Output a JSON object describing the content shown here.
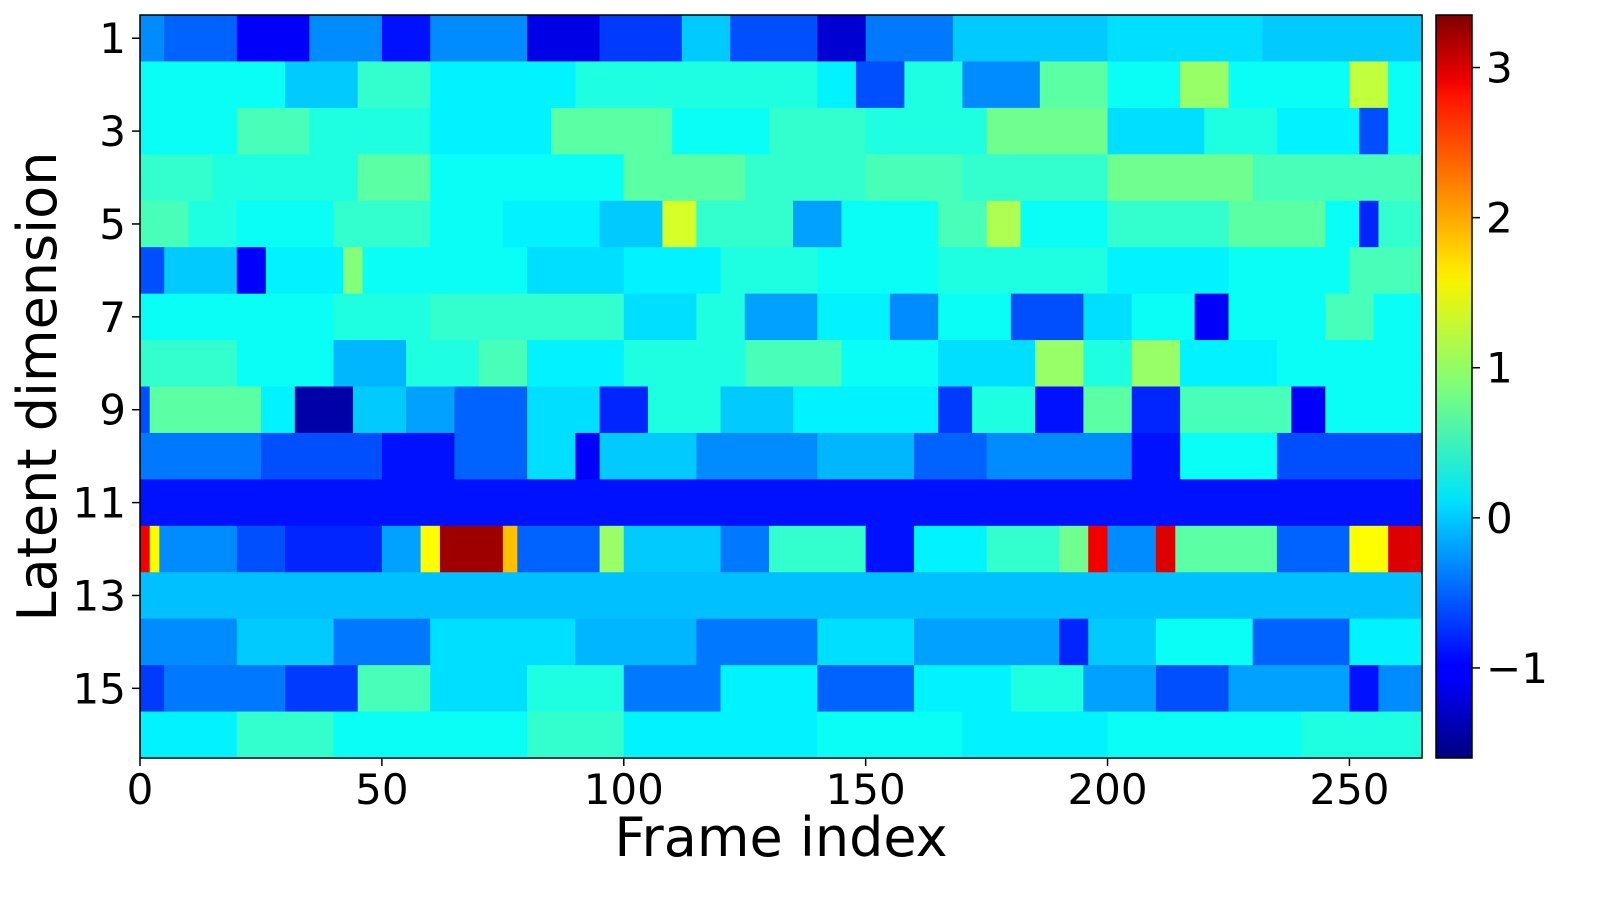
{
  "chart_data": {
    "type": "heatmap",
    "title": "",
    "xlabel": "Frame index",
    "ylabel": "Latent dimension",
    "colormap": "jet",
    "xlim": [
      0,
      265
    ],
    "rows": 16,
    "cols": 265,
    "x_ticks": [
      0,
      50,
      100,
      150,
      200,
      250
    ],
    "y_ticks": [
      1,
      3,
      5,
      7,
      9,
      11,
      13,
      15
    ],
    "colorbar": {
      "vmin": -1.6,
      "vmax": 3.35,
      "ticks": [
        -1,
        0,
        1,
        2,
        3
      ],
      "tick_labels": [
        "−1",
        "0",
        "1",
        "2",
        "3"
      ]
    },
    "rows_data": [
      {
        "dimension": 1,
        "segments": [
          [
            0,
            5,
            -0.3
          ],
          [
            5,
            20,
            -0.5
          ],
          [
            20,
            35,
            -1.0
          ],
          [
            35,
            50,
            -0.3
          ],
          [
            50,
            60,
            -0.9
          ],
          [
            60,
            80,
            -0.3
          ],
          [
            80,
            95,
            -1.1
          ],
          [
            95,
            112,
            -0.7
          ],
          [
            112,
            122,
            0.0
          ],
          [
            122,
            140,
            -0.6
          ],
          [
            140,
            150,
            -1.2
          ],
          [
            150,
            168,
            -0.4
          ],
          [
            168,
            200,
            0.0
          ],
          [
            200,
            232,
            0.1
          ],
          [
            232,
            265,
            0.0
          ]
        ]
      },
      {
        "dimension": 2,
        "segments": [
          [
            0,
            30,
            0.3
          ],
          [
            30,
            45,
            0.0
          ],
          [
            45,
            60,
            0.5
          ],
          [
            60,
            90,
            0.2
          ],
          [
            90,
            140,
            0.4
          ],
          [
            140,
            148,
            0.2
          ],
          [
            148,
            158,
            -0.6
          ],
          [
            158,
            170,
            0.4
          ],
          [
            170,
            186,
            -0.3
          ],
          [
            186,
            200,
            0.7
          ],
          [
            200,
            215,
            0.3
          ],
          [
            215,
            225,
            1.0
          ],
          [
            225,
            250,
            0.3
          ],
          [
            250,
            258,
            1.2
          ],
          [
            258,
            265,
            0.3
          ]
        ]
      },
      {
        "dimension": 3,
        "segments": [
          [
            0,
            20,
            0.3
          ],
          [
            20,
            35,
            0.6
          ],
          [
            35,
            60,
            0.4
          ],
          [
            60,
            85,
            0.2
          ],
          [
            85,
            110,
            0.7
          ],
          [
            110,
            130,
            0.3
          ],
          [
            130,
            150,
            0.5
          ],
          [
            150,
            175,
            0.4
          ],
          [
            175,
            200,
            0.8
          ],
          [
            200,
            220,
            0.1
          ],
          [
            220,
            235,
            0.4
          ],
          [
            235,
            252,
            0.2
          ],
          [
            252,
            258,
            -0.6
          ],
          [
            258,
            265,
            0.3
          ]
        ]
      },
      {
        "dimension": 4,
        "segments": [
          [
            0,
            15,
            0.5
          ],
          [
            15,
            45,
            0.4
          ],
          [
            45,
            60,
            0.7
          ],
          [
            60,
            100,
            0.3
          ],
          [
            100,
            125,
            0.7
          ],
          [
            125,
            150,
            0.5
          ],
          [
            150,
            170,
            0.6
          ],
          [
            170,
            200,
            0.5
          ],
          [
            200,
            230,
            0.8
          ],
          [
            230,
            265,
            0.6
          ]
        ]
      },
      {
        "dimension": 5,
        "segments": [
          [
            0,
            10,
            0.6
          ],
          [
            10,
            20,
            0.4
          ],
          [
            20,
            40,
            0.3
          ],
          [
            40,
            60,
            0.5
          ],
          [
            60,
            75,
            0.3
          ],
          [
            75,
            95,
            0.2
          ],
          [
            95,
            108,
            0.0
          ],
          [
            108,
            115,
            1.3
          ],
          [
            115,
            135,
            0.5
          ],
          [
            135,
            145,
            -0.2
          ],
          [
            145,
            165,
            0.3
          ],
          [
            165,
            175,
            0.6
          ],
          [
            175,
            182,
            1.1
          ],
          [
            182,
            200,
            0.3
          ],
          [
            200,
            225,
            0.5
          ],
          [
            225,
            245,
            0.7
          ],
          [
            245,
            252,
            0.3
          ],
          [
            252,
            256,
            -0.8
          ],
          [
            256,
            265,
            0.5
          ]
        ]
      },
      {
        "dimension": 6,
        "segments": [
          [
            0,
            5,
            -0.6
          ],
          [
            5,
            20,
            0.0
          ],
          [
            20,
            26,
            -1.0
          ],
          [
            26,
            42,
            0.2
          ],
          [
            42,
            46,
            0.9
          ],
          [
            46,
            80,
            0.3
          ],
          [
            80,
            100,
            0.1
          ],
          [
            100,
            120,
            0.2
          ],
          [
            120,
            140,
            0.4
          ],
          [
            140,
            165,
            0.3
          ],
          [
            165,
            200,
            0.4
          ],
          [
            200,
            225,
            0.2
          ],
          [
            225,
            250,
            0.3
          ],
          [
            250,
            265,
            0.6
          ]
        ]
      },
      {
        "dimension": 7,
        "segments": [
          [
            0,
            40,
            0.3
          ],
          [
            40,
            60,
            0.4
          ],
          [
            60,
            100,
            0.5
          ],
          [
            100,
            115,
            0.1
          ],
          [
            115,
            125,
            0.4
          ],
          [
            125,
            140,
            -0.2
          ],
          [
            140,
            155,
            0.2
          ],
          [
            155,
            165,
            -0.3
          ],
          [
            165,
            180,
            0.3
          ],
          [
            180,
            195,
            -0.6
          ],
          [
            195,
            205,
            0.1
          ],
          [
            205,
            218,
            0.3
          ],
          [
            218,
            225,
            -1.0
          ],
          [
            225,
            245,
            0.3
          ],
          [
            245,
            255,
            0.6
          ],
          [
            255,
            265,
            0.3
          ]
        ]
      },
      {
        "dimension": 8,
        "segments": [
          [
            0,
            20,
            0.5
          ],
          [
            20,
            40,
            0.3
          ],
          [
            40,
            55,
            -0.1
          ],
          [
            55,
            70,
            0.4
          ],
          [
            70,
            80,
            0.6
          ],
          [
            80,
            100,
            0.2
          ],
          [
            100,
            125,
            0.4
          ],
          [
            125,
            145,
            0.6
          ],
          [
            145,
            165,
            0.3
          ],
          [
            165,
            185,
            0.1
          ],
          [
            185,
            195,
            1.0
          ],
          [
            195,
            205,
            0.4
          ],
          [
            205,
            215,
            1.0
          ],
          [
            215,
            235,
            0.2
          ],
          [
            235,
            265,
            0.3
          ]
        ]
      },
      {
        "dimension": 9,
        "segments": [
          [
            0,
            2,
            -0.6
          ],
          [
            2,
            25,
            0.7
          ],
          [
            25,
            32,
            0.2
          ],
          [
            32,
            44,
            -1.4
          ],
          [
            44,
            55,
            0.0
          ],
          [
            55,
            65,
            -0.2
          ],
          [
            65,
            80,
            -0.5
          ],
          [
            80,
            95,
            0.1
          ],
          [
            95,
            105,
            -0.8
          ],
          [
            105,
            120,
            0.4
          ],
          [
            120,
            135,
            0.0
          ],
          [
            135,
            165,
            0.2
          ],
          [
            165,
            172,
            -0.7
          ],
          [
            172,
            185,
            0.4
          ],
          [
            185,
            195,
            -0.9
          ],
          [
            195,
            205,
            0.7
          ],
          [
            205,
            215,
            -0.8
          ],
          [
            215,
            238,
            0.6
          ],
          [
            238,
            245,
            -1.0
          ],
          [
            245,
            265,
            0.3
          ]
        ]
      },
      {
        "dimension": 10,
        "segments": [
          [
            0,
            25,
            -0.4
          ],
          [
            25,
            50,
            -0.6
          ],
          [
            50,
            65,
            -0.9
          ],
          [
            65,
            80,
            -0.5
          ],
          [
            80,
            90,
            0.1
          ],
          [
            90,
            95,
            -1.0
          ],
          [
            95,
            115,
            0.0
          ],
          [
            115,
            140,
            -0.3
          ],
          [
            140,
            160,
            -0.1
          ],
          [
            160,
            175,
            -0.5
          ],
          [
            175,
            205,
            -0.3
          ],
          [
            205,
            215,
            -0.9
          ],
          [
            215,
            235,
            0.3
          ],
          [
            235,
            265,
            -0.6
          ]
        ]
      },
      {
        "dimension": 11,
        "segments": [
          [
            0,
            265,
            -0.9
          ]
        ]
      },
      {
        "dimension": 12,
        "segments": [
          [
            0,
            2,
            2.8
          ],
          [
            2,
            4,
            1.5
          ],
          [
            4,
            20,
            -0.3
          ],
          [
            20,
            30,
            -0.6
          ],
          [
            30,
            50,
            -0.8
          ],
          [
            50,
            58,
            -0.2
          ],
          [
            58,
            62,
            1.5
          ],
          [
            62,
            75,
            3.2
          ],
          [
            75,
            78,
            1.8
          ],
          [
            78,
            95,
            -0.5
          ],
          [
            95,
            100,
            1.0
          ],
          [
            100,
            120,
            0.0
          ],
          [
            120,
            130,
            -0.4
          ],
          [
            130,
            150,
            0.5
          ],
          [
            150,
            160,
            -0.9
          ],
          [
            160,
            175,
            0.2
          ],
          [
            175,
            190,
            0.5
          ],
          [
            190,
            196,
            0.8
          ],
          [
            196,
            200,
            2.8
          ],
          [
            200,
            210,
            -0.3
          ],
          [
            210,
            214,
            2.9
          ],
          [
            214,
            235,
            0.7
          ],
          [
            235,
            250,
            -0.5
          ],
          [
            250,
            258,
            1.5
          ],
          [
            258,
            265,
            2.9
          ]
        ]
      },
      {
        "dimension": 13,
        "segments": [
          [
            0,
            265,
            -0.05
          ]
        ]
      },
      {
        "dimension": 14,
        "segments": [
          [
            0,
            20,
            -0.3
          ],
          [
            20,
            40,
            0.0
          ],
          [
            40,
            60,
            -0.4
          ],
          [
            60,
            90,
            0.1
          ],
          [
            90,
            115,
            -0.1
          ],
          [
            115,
            140,
            -0.4
          ],
          [
            140,
            160,
            0.1
          ],
          [
            160,
            190,
            -0.2
          ],
          [
            190,
            196,
            -0.8
          ],
          [
            196,
            210,
            0.0
          ],
          [
            210,
            230,
            0.3
          ],
          [
            230,
            250,
            -0.5
          ],
          [
            250,
            265,
            0.2
          ]
        ]
      },
      {
        "dimension": 15,
        "segments": [
          [
            0,
            5,
            -0.7
          ],
          [
            5,
            30,
            -0.4
          ],
          [
            30,
            45,
            -0.7
          ],
          [
            45,
            60,
            0.6
          ],
          [
            60,
            80,
            0.1
          ],
          [
            80,
            100,
            0.4
          ],
          [
            100,
            120,
            -0.4
          ],
          [
            120,
            140,
            0.2
          ],
          [
            140,
            160,
            -0.5
          ],
          [
            160,
            180,
            0.2
          ],
          [
            180,
            195,
            0.4
          ],
          [
            195,
            210,
            -0.2
          ],
          [
            210,
            225,
            -0.6
          ],
          [
            225,
            250,
            -0.2
          ],
          [
            250,
            256,
            -0.9
          ],
          [
            256,
            265,
            -0.3
          ]
        ]
      },
      {
        "dimension": 16,
        "segments": [
          [
            0,
            20,
            0.2
          ],
          [
            20,
            40,
            0.5
          ],
          [
            40,
            80,
            0.3
          ],
          [
            80,
            100,
            0.5
          ],
          [
            100,
            140,
            0.2
          ],
          [
            140,
            170,
            0.3
          ],
          [
            170,
            200,
            0.2
          ],
          [
            200,
            240,
            0.3
          ],
          [
            240,
            265,
            0.4
          ]
        ]
      }
    ]
  }
}
